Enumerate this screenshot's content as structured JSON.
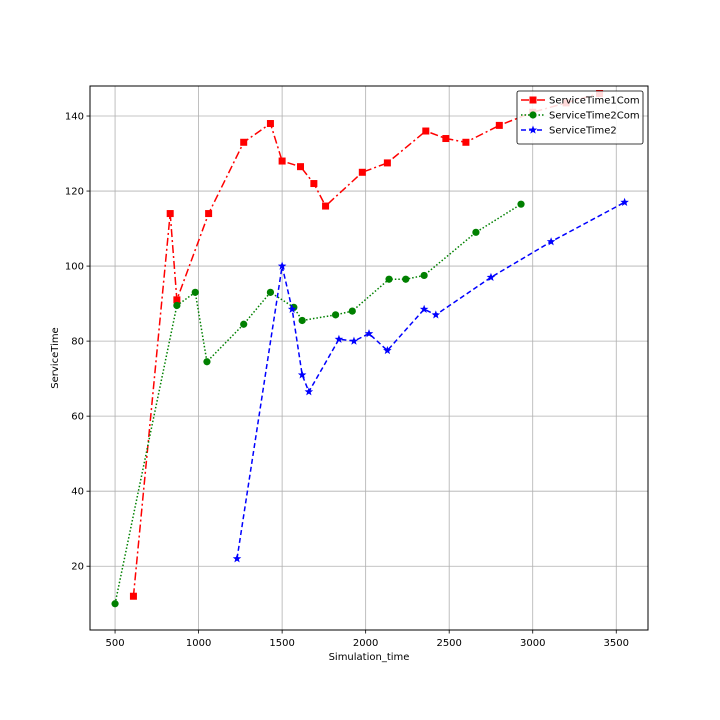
{
  "chart_data": {
    "type": "line",
    "title": "",
    "xlabel": "Simulation_time",
    "ylabel": "ServiceTime",
    "xlim": [
      350,
      3690
    ],
    "ylim": [
      3,
      148
    ],
    "xticks": [
      500,
      1000,
      1500,
      2000,
      2500,
      3000,
      3500
    ],
    "yticks": [
      20,
      40,
      60,
      80,
      100,
      120,
      140
    ],
    "grid": true,
    "legend_position": "top-right",
    "series": [
      {
        "name": "ServiceTime1Com",
        "color": "#ff0000",
        "line_style": "dashdot",
        "marker": "square",
        "x": [
          610,
          830,
          870,
          1060,
          1270,
          1430,
          1500,
          1610,
          1690,
          1760,
          1980,
          2130,
          2360,
          2480,
          2600,
          2800,
          3000,
          3200,
          3400
        ],
        "y": [
          12,
          114,
          91,
          114,
          133,
          138,
          128,
          126.5,
          122,
          116,
          125,
          127.5,
          136,
          134,
          133,
          137.5,
          141,
          143.5,
          146
        ]
      },
      {
        "name": "ServiceTime2Com",
        "color": "#008000",
        "line_style": "dotted",
        "marker": "circle",
        "x": [
          500,
          870,
          980,
          1050,
          1270,
          1430,
          1570,
          1620,
          1820,
          1920,
          2140,
          2240,
          2350,
          2660,
          2930
        ],
        "y": [
          10,
          89.5,
          93,
          74.5,
          84.5,
          93,
          89,
          85.5,
          87,
          88,
          96.5,
          96.5,
          97.5,
          109,
          116.5
        ]
      },
      {
        "name": "ServiceTime2",
        "color": "#0000ff",
        "line_style": "dashed",
        "marker": "star",
        "x": [
          1230,
          1500,
          1560,
          1620,
          1660,
          1840,
          1930,
          2020,
          2130,
          2350,
          2420,
          2750,
          3110,
          3550
        ],
        "y": [
          22,
          100,
          88.5,
          71,
          66.5,
          80.5,
          80,
          82,
          77.5,
          88.5,
          87,
          97,
          106.5,
          117
        ]
      }
    ]
  }
}
